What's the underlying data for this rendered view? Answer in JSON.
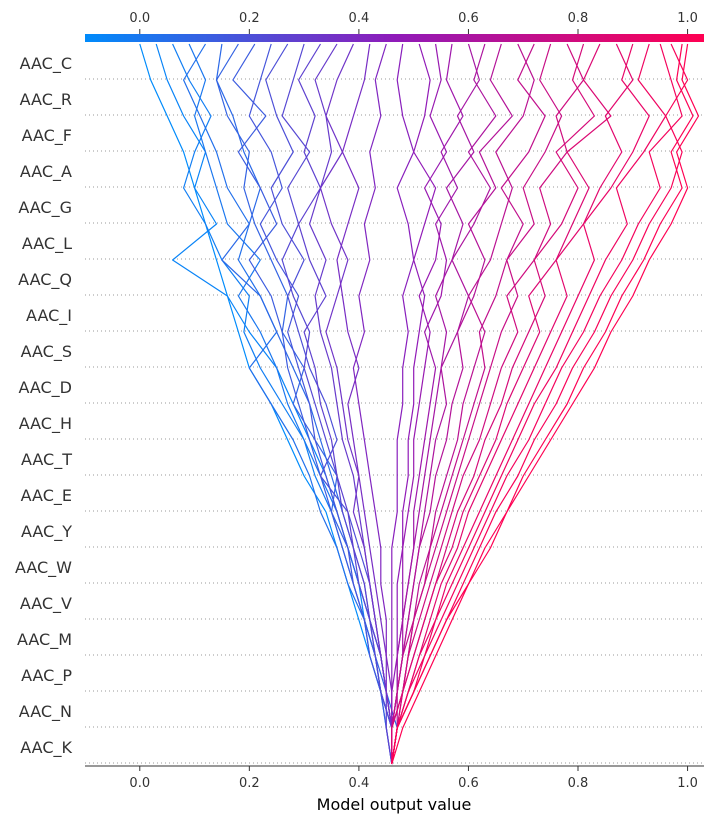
{
  "chart_data": {
    "type": "line",
    "title": "",
    "xlabel": "Model output value",
    "ylabel": "",
    "xlim": [
      -0.1,
      1.03
    ],
    "x_ticks": [
      "0.0",
      "0.2",
      "0.4",
      "0.6",
      "0.8",
      "1.0"
    ],
    "base_value": 0.46,
    "features": [
      "AAC_C",
      "AAC_R",
      "AAC_F",
      "AAC_A",
      "AAC_G",
      "AAC_L",
      "AAC_Q",
      "AAC_I",
      "AAC_S",
      "AAC_D",
      "AAC_H",
      "AAC_T",
      "AAC_E",
      "AAC_Y",
      "AAC_W",
      "AAC_V",
      "AAC_M",
      "AAC_P",
      "AAC_N",
      "AAC_K"
    ],
    "grid": "dotted horizontal lines between feature rows",
    "colorbar": "blue (0.0) to red (1.0) along the top axis",
    "colors": {
      "low": "#008bfb",
      "mid": "#8f1bb9",
      "high": "#ff0052"
    },
    "series": [
      {
        "output": 0.0,
        "values": [
          0.46,
          0.46,
          0.44,
          0.42,
          0.4,
          0.38,
          0.36,
          0.34,
          0.3,
          0.27,
          0.24,
          0.2,
          0.18,
          0.16,
          0.14,
          0.12,
          0.1,
          0.08,
          0.05,
          0.02,
          0.0
        ]
      },
      {
        "output": 0.03,
        "values": [
          0.46,
          0.46,
          0.44,
          0.43,
          0.41,
          0.4,
          0.38,
          0.36,
          0.34,
          0.31,
          0.28,
          0.25,
          0.2,
          0.16,
          0.06,
          0.14,
          0.1,
          0.12,
          0.08,
          0.05,
          0.03
        ]
      },
      {
        "output": 0.06,
        "values": [
          0.46,
          0.45,
          0.44,
          0.42,
          0.41,
          0.39,
          0.37,
          0.35,
          0.32,
          0.3,
          0.26,
          0.22,
          0.19,
          0.2,
          0.15,
          0.12,
          0.08,
          0.1,
          0.13,
          0.09,
          0.06
        ]
      },
      {
        "output": 0.09,
        "values": [
          0.46,
          0.46,
          0.45,
          0.44,
          0.42,
          0.4,
          0.38,
          0.36,
          0.33,
          0.3,
          0.27,
          0.25,
          0.22,
          0.18,
          0.22,
          0.16,
          0.14,
          0.12,
          0.1,
          0.12,
          0.09
        ]
      },
      {
        "output": 0.12,
        "values": [
          0.46,
          0.46,
          0.44,
          0.43,
          0.41,
          0.38,
          0.36,
          0.33,
          0.31,
          0.28,
          0.24,
          0.2,
          0.25,
          0.22,
          0.18,
          0.2,
          0.16,
          0.14,
          0.11,
          0.08,
          0.12
        ]
      },
      {
        "output": 0.15,
        "values": [
          0.46,
          0.47,
          0.45,
          0.44,
          0.42,
          0.41,
          0.39,
          0.37,
          0.35,
          0.33,
          0.31,
          0.28,
          0.25,
          0.22,
          0.15,
          0.2,
          0.22,
          0.19,
          0.17,
          0.14,
          0.15
        ]
      },
      {
        "output": 0.18,
        "values": [
          0.46,
          0.46,
          0.45,
          0.43,
          0.42,
          0.4,
          0.38,
          0.35,
          0.36,
          0.32,
          0.28,
          0.3,
          0.26,
          0.27,
          0.24,
          0.21,
          0.19,
          0.2,
          0.16,
          0.14,
          0.18
        ]
      },
      {
        "output": 0.21,
        "values": [
          0.46,
          0.45,
          0.44,
          0.43,
          0.41,
          0.39,
          0.37,
          0.35,
          0.33,
          0.31,
          0.29,
          0.27,
          0.26,
          0.24,
          0.2,
          0.25,
          0.22,
          0.18,
          0.23,
          0.17,
          0.21
        ]
      },
      {
        "output": 0.24,
        "values": [
          0.46,
          0.46,
          0.44,
          0.42,
          0.41,
          0.39,
          0.38,
          0.36,
          0.34,
          0.32,
          0.31,
          0.29,
          0.27,
          0.29,
          0.25,
          0.22,
          0.26,
          0.24,
          0.2,
          0.22,
          0.24
        ]
      },
      {
        "output": 0.27,
        "values": [
          0.46,
          0.46,
          0.45,
          0.44,
          0.43,
          0.42,
          0.4,
          0.38,
          0.33,
          0.36,
          0.34,
          0.31,
          0.29,
          0.27,
          0.3,
          0.26,
          0.24,
          0.28,
          0.25,
          0.23,
          0.27
        ]
      },
      {
        "output": 0.3,
        "values": [
          0.46,
          0.46,
          0.44,
          0.43,
          0.42,
          0.4,
          0.39,
          0.37,
          0.36,
          0.34,
          0.32,
          0.3,
          0.31,
          0.28,
          0.26,
          0.29,
          0.27,
          0.31,
          0.26,
          0.28,
          0.3
        ]
      },
      {
        "output": 0.33,
        "values": [
          0.46,
          0.45,
          0.45,
          0.44,
          0.42,
          0.41,
          0.39,
          0.38,
          0.36,
          0.35,
          0.33,
          0.32,
          0.3,
          0.34,
          0.31,
          0.29,
          0.33,
          0.3,
          0.32,
          0.29,
          0.33
        ]
      },
      {
        "output": 0.36,
        "values": [
          0.46,
          0.46,
          0.45,
          0.44,
          0.43,
          0.42,
          0.41,
          0.4,
          0.39,
          0.37,
          0.36,
          0.35,
          0.33,
          0.32,
          0.34,
          0.31,
          0.33,
          0.35,
          0.34,
          0.32,
          0.36
        ]
      },
      {
        "output": 0.39,
        "values": [
          0.46,
          0.46,
          0.45,
          0.44,
          0.43,
          0.42,
          0.41,
          0.39,
          0.4,
          0.38,
          0.37,
          0.36,
          0.34,
          0.36,
          0.38,
          0.35,
          0.33,
          0.37,
          0.34,
          0.36,
          0.39
        ]
      },
      {
        "output": 0.42,
        "values": [
          0.46,
          0.46,
          0.45,
          0.45,
          0.44,
          0.43,
          0.42,
          0.41,
          0.4,
          0.39,
          0.38,
          0.4,
          0.38,
          0.37,
          0.36,
          0.38,
          0.4,
          0.37,
          0.39,
          0.41,
          0.42
        ]
      },
      {
        "output": 0.45,
        "values": [
          0.46,
          0.46,
          0.46,
          0.45,
          0.45,
          0.44,
          0.44,
          0.43,
          0.42,
          0.41,
          0.4,
          0.39,
          0.41,
          0.4,
          0.42,
          0.41,
          0.43,
          0.42,
          0.44,
          0.43,
          0.45
        ]
      },
      {
        "output": 0.48,
        "values": [
          0.46,
          0.46,
          0.46,
          0.46,
          0.46,
          0.46,
          0.46,
          0.47,
          0.47,
          0.47,
          0.48,
          0.48,
          0.49,
          0.48,
          0.5,
          0.49,
          0.47,
          0.5,
          0.48,
          0.47,
          0.48
        ]
      },
      {
        "output": 0.51,
        "values": [
          0.46,
          0.46,
          0.46,
          0.47,
          0.47,
          0.47,
          0.48,
          0.48,
          0.49,
          0.49,
          0.5,
          0.5,
          0.51,
          0.52,
          0.5,
          0.52,
          0.54,
          0.5,
          0.52,
          0.53,
          0.51
        ]
      },
      {
        "output": 0.54,
        "values": [
          0.46,
          0.46,
          0.47,
          0.47,
          0.48,
          0.48,
          0.48,
          0.49,
          0.5,
          0.5,
          0.51,
          0.52,
          0.53,
          0.51,
          0.54,
          0.55,
          0.52,
          0.56,
          0.53,
          0.55,
          0.54
        ]
      },
      {
        "output": 0.57,
        "values": [
          0.46,
          0.46,
          0.47,
          0.47,
          0.48,
          0.49,
          0.5,
          0.5,
          0.51,
          0.52,
          0.53,
          0.54,
          0.52,
          0.55,
          0.56,
          0.54,
          0.58,
          0.55,
          0.59,
          0.56,
          0.57
        ]
      },
      {
        "output": 0.6,
        "values": [
          0.46,
          0.46,
          0.47,
          0.48,
          0.48,
          0.49,
          0.5,
          0.51,
          0.52,
          0.53,
          0.54,
          0.55,
          0.56,
          0.54,
          0.57,
          0.59,
          0.56,
          0.61,
          0.58,
          0.62,
          0.6
        ]
      },
      {
        "output": 0.63,
        "values": [
          0.46,
          0.46,
          0.47,
          0.48,
          0.49,
          0.5,
          0.51,
          0.52,
          0.53,
          0.54,
          0.56,
          0.55,
          0.58,
          0.6,
          0.57,
          0.61,
          0.64,
          0.6,
          0.65,
          0.61,
          0.63
        ]
      },
      {
        "output": 0.66,
        "values": [
          0.46,
          0.47,
          0.47,
          0.48,
          0.49,
          0.5,
          0.51,
          0.53,
          0.54,
          0.56,
          0.57,
          0.59,
          0.58,
          0.61,
          0.63,
          0.6,
          0.65,
          0.62,
          0.68,
          0.64,
          0.66
        ]
      },
      {
        "output": 0.69,
        "values": [
          0.46,
          0.46,
          0.48,
          0.49,
          0.5,
          0.51,
          0.53,
          0.54,
          0.56,
          0.58,
          0.59,
          0.61,
          0.63,
          0.6,
          0.64,
          0.66,
          0.68,
          0.65,
          0.7,
          0.72,
          0.69
        ]
      },
      {
        "output": 0.72,
        "values": [
          0.46,
          0.46,
          0.47,
          0.48,
          0.5,
          0.52,
          0.53,
          0.55,
          0.57,
          0.59,
          0.61,
          0.63,
          0.62,
          0.65,
          0.67,
          0.7,
          0.66,
          0.71,
          0.74,
          0.69,
          0.72
        ]
      },
      {
        "output": 0.75,
        "values": [
          0.46,
          0.47,
          0.48,
          0.49,
          0.5,
          0.52,
          0.54,
          0.56,
          0.58,
          0.6,
          0.62,
          0.64,
          0.66,
          0.69,
          0.67,
          0.72,
          0.7,
          0.74,
          0.77,
          0.73,
          0.75
        ]
      },
      {
        "output": 0.78,
        "values": [
          0.46,
          0.46,
          0.48,
          0.49,
          0.51,
          0.53,
          0.55,
          0.57,
          0.59,
          0.62,
          0.64,
          0.66,
          0.69,
          0.67,
          0.72,
          0.75,
          0.73,
          0.78,
          0.76,
          0.81,
          0.78
        ]
      },
      {
        "output": 0.81,
        "values": [
          0.46,
          0.47,
          0.48,
          0.5,
          0.52,
          0.54,
          0.56,
          0.58,
          0.61,
          0.63,
          0.66,
          0.68,
          0.71,
          0.74,
          0.72,
          0.77,
          0.8,
          0.76,
          0.83,
          0.79,
          0.81
        ]
      },
      {
        "output": 0.84,
        "values": [
          0.46,
          0.46,
          0.48,
          0.5,
          0.52,
          0.54,
          0.57,
          0.59,
          0.62,
          0.65,
          0.67,
          0.7,
          0.73,
          0.71,
          0.76,
          0.79,
          0.82,
          0.78,
          0.86,
          0.81,
          0.84
        ]
      },
      {
        "output": 0.87,
        "values": [
          0.46,
          0.47,
          0.49,
          0.51,
          0.53,
          0.55,
          0.58,
          0.6,
          0.63,
          0.66,
          0.69,
          0.72,
          0.75,
          0.78,
          0.76,
          0.81,
          0.84,
          0.88,
          0.85,
          0.9,
          0.87
        ]
      },
      {
        "output": 0.9,
        "values": [
          0.46,
          0.47,
          0.49,
          0.51,
          0.54,
          0.56,
          0.59,
          0.62,
          0.65,
          0.68,
          0.71,
          0.74,
          0.77,
          0.8,
          0.83,
          0.81,
          0.86,
          0.9,
          0.93,
          0.88,
          0.9
        ]
      },
      {
        "output": 0.93,
        "values": [
          0.46,
          0.47,
          0.49,
          0.52,
          0.54,
          0.57,
          0.6,
          0.63,
          0.66,
          0.69,
          0.72,
          0.76,
          0.79,
          0.82,
          0.85,
          0.89,
          0.87,
          0.92,
          0.96,
          0.91,
          0.93
        ]
      },
      {
        "output": 0.95,
        "values": [
          0.46,
          0.47,
          0.5,
          0.52,
          0.55,
          0.58,
          0.61,
          0.64,
          0.67,
          0.71,
          0.74,
          0.77,
          0.81,
          0.84,
          0.88,
          0.91,
          0.95,
          0.93,
          0.99,
          0.97,
          0.95
        ]
      },
      {
        "output": 0.97,
        "values": [
          0.46,
          0.47,
          0.5,
          0.53,
          0.56,
          0.59,
          0.62,
          0.65,
          0.69,
          0.72,
          0.76,
          0.79,
          0.83,
          0.86,
          0.9,
          0.93,
          0.97,
          0.99,
          0.96,
          1.0,
          0.97
        ]
      },
      {
        "output": 0.99,
        "values": [
          0.46,
          0.47,
          0.5,
          0.53,
          0.56,
          0.6,
          0.63,
          0.67,
          0.7,
          0.74,
          0.78,
          0.81,
          0.85,
          0.88,
          0.92,
          0.95,
          0.99,
          0.97,
          1.01,
          0.98,
          0.99
        ]
      },
      {
        "output": 1.0,
        "values": [
          0.46,
          0.48,
          0.51,
          0.54,
          0.57,
          0.6,
          0.64,
          0.67,
          0.71,
          0.75,
          0.79,
          0.83,
          0.86,
          0.9,
          0.93,
          0.97,
          1.0,
          0.98,
          1.02,
          0.99,
          1.0
        ]
      }
    ]
  }
}
